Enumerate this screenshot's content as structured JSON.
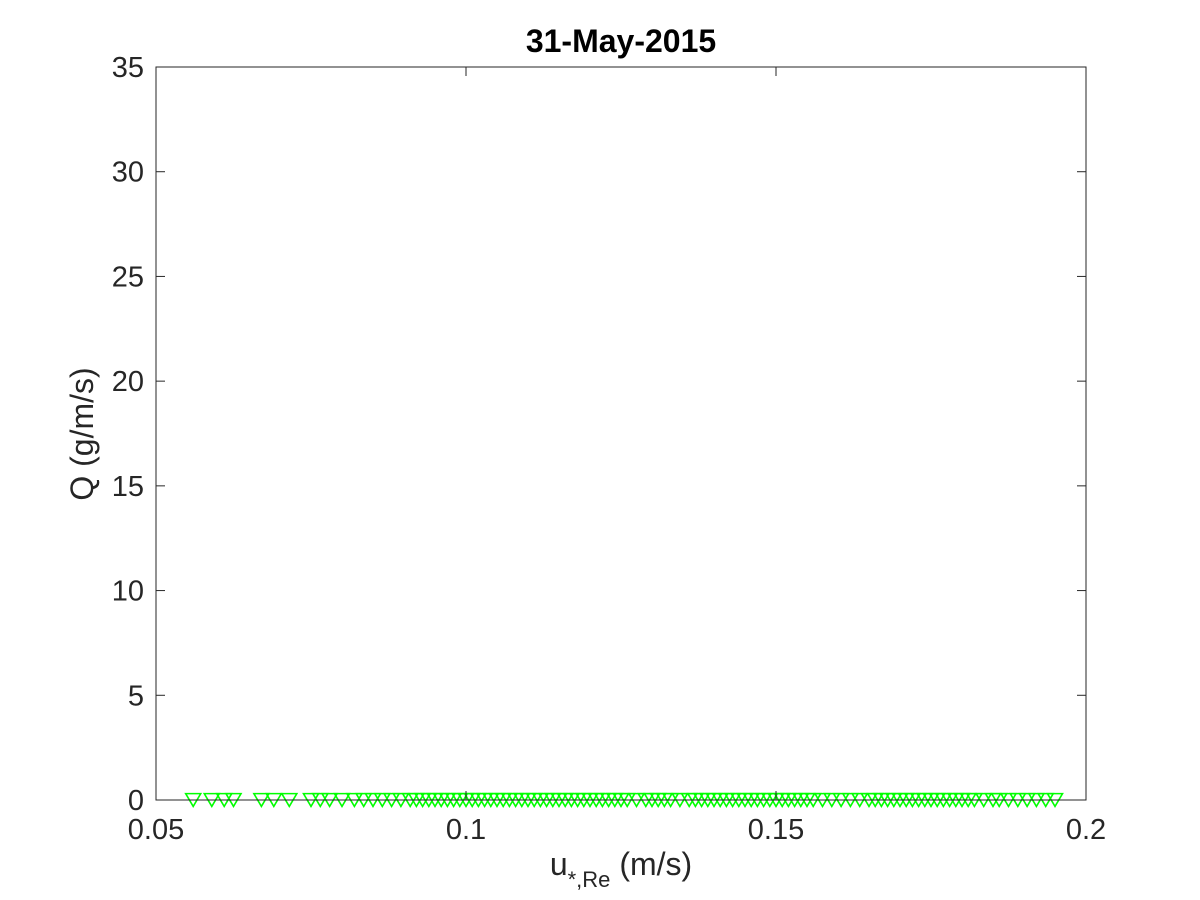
{
  "chart_data": {
    "type": "scatter",
    "title": "31-May-2015",
    "xlabel": {
      "base": "u",
      "subscript": "*,Re",
      "unit": " (m/s)"
    },
    "ylabel": "Q (g/m/s)",
    "xlim": [
      0.05,
      0.2
    ],
    "ylim": [
      0,
      35
    ],
    "xticks": [
      0.05,
      0.1,
      0.15,
      0.2
    ],
    "xtick_labels": [
      "0.05",
      "0.1",
      "0.15",
      "0.2"
    ],
    "yticks": [
      0,
      5,
      10,
      15,
      20,
      25,
      30,
      35
    ],
    "ytick_labels": [
      "0",
      "5",
      "10",
      "15",
      "20",
      "25",
      "30",
      "35"
    ],
    "grid": false,
    "marker": "downward-triangle",
    "marker_color": "#00ff00",
    "series": [
      {
        "x": [
          0.056,
          0.059,
          0.061,
          0.0625,
          0.067,
          0.069,
          0.0715,
          0.075,
          0.0765,
          0.078,
          0.08,
          0.082,
          0.0835,
          0.085,
          0.0865,
          0.088,
          0.0895,
          0.091,
          0.092,
          0.093,
          0.094,
          0.095,
          0.096,
          0.097,
          0.098,
          0.099,
          0.1,
          0.101,
          0.102,
          0.103,
          0.104,
          0.105,
          0.106,
          0.107,
          0.108,
          0.109,
          0.11,
          0.111,
          0.112,
          0.113,
          0.114,
          0.115,
          0.116,
          0.117,
          0.118,
          0.119,
          0.12,
          0.121,
          0.122,
          0.123,
          0.124,
          0.125,
          0.126,
          0.1275,
          0.129,
          0.13,
          0.131,
          0.132,
          0.133,
          0.1345,
          0.136,
          0.137,
          0.138,
          0.139,
          0.14,
          0.141,
          0.142,
          0.143,
          0.144,
          0.145,
          0.146,
          0.147,
          0.148,
          0.149,
          0.15,
          0.151,
          0.152,
          0.153,
          0.154,
          0.155,
          0.156,
          0.1575,
          0.159,
          0.1605,
          0.162,
          0.1635,
          0.165,
          0.166,
          0.167,
          0.168,
          0.169,
          0.17,
          0.171,
          0.172,
          0.173,
          0.174,
          0.175,
          0.176,
          0.177,
          0.178,
          0.179,
          0.18,
          0.181,
          0.182,
          0.1835,
          0.185,
          0.186,
          0.1875,
          0.189,
          0.1905,
          0.192,
          0.1935,
          0.195
        ],
        "y": [
          0,
          0,
          0,
          0,
          0,
          0,
          0,
          0,
          0,
          0,
          0,
          0,
          0,
          0,
          0,
          0,
          0,
          0,
          0,
          0,
          0,
          0,
          0,
          0,
          0,
          0,
          0,
          0,
          0,
          0,
          0,
          0,
          0,
          0,
          0,
          0,
          0,
          0,
          0,
          0,
          0,
          0,
          0,
          0,
          0,
          0,
          0,
          0,
          0,
          0,
          0,
          0,
          0,
          0,
          0,
          0,
          0,
          0,
          0,
          0,
          0,
          0,
          0,
          0,
          0,
          0,
          0,
          0,
          0,
          0,
          0,
          0,
          0,
          0,
          0,
          0,
          0,
          0,
          0,
          0,
          0,
          0,
          0,
          0,
          0,
          0,
          0,
          0,
          0,
          0,
          0,
          0,
          0,
          0,
          0,
          0,
          0,
          0,
          0,
          0,
          0,
          0,
          0,
          0,
          0,
          0,
          0,
          0,
          0,
          0,
          0,
          0,
          0
        ]
      }
    ]
  }
}
